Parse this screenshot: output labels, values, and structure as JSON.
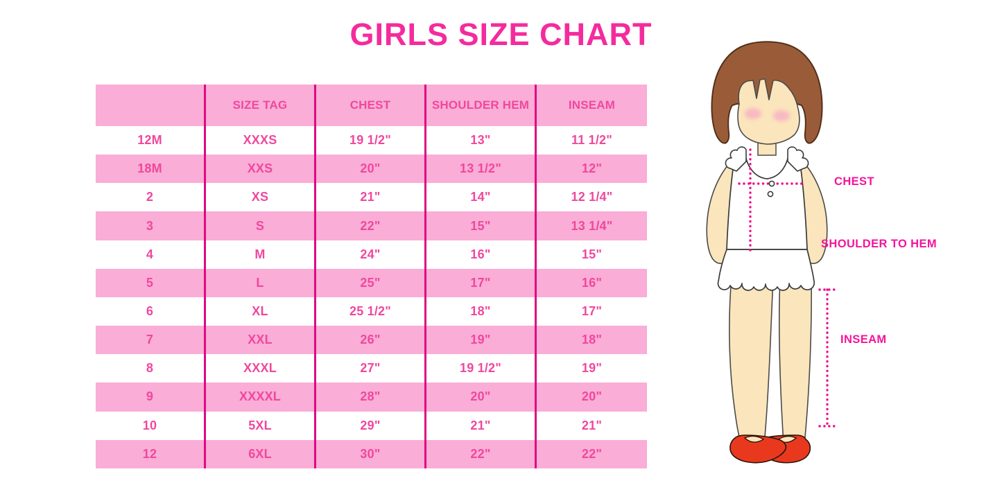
{
  "title": "GIRLS SIZE CHART",
  "colors": {
    "title_pink": "#F42B9D",
    "row_pink": "#FAADD6",
    "divider_magenta": "#DF0980",
    "cell_text_pink": "#F0479E",
    "label_pink": "#F5149B",
    "dotted_line_pink": "#EF0F8E",
    "hair_brown": "#9A5C38",
    "skin": "#FBE5BC",
    "shoe_red": "#E8391F"
  },
  "chart_data": {
    "type": "table",
    "title": "GIRLS SIZE CHART",
    "columns": [
      "",
      "SIZE TAG",
      "CHEST",
      "SHOULDER HEM",
      "INSEAM"
    ],
    "rows": [
      [
        "12M",
        "XXXS",
        "19 1/2\"",
        "13\"",
        "11 1/2\""
      ],
      [
        "18M",
        "XXS",
        "20\"",
        "13 1/2\"",
        "12\""
      ],
      [
        "2",
        "XS",
        "21\"",
        "14\"",
        "12 1/4\""
      ],
      [
        "3",
        "S",
        "22\"",
        "15\"",
        "13 1/4\""
      ],
      [
        "4",
        "M",
        "24\"",
        "16\"",
        "15\""
      ],
      [
        "5",
        "L",
        "25\"",
        "17\"",
        "16\""
      ],
      [
        "6",
        "XL",
        "25 1/2\"",
        "18\"",
        "17\""
      ],
      [
        "7",
        "XXL",
        "26\"",
        "19\"",
        "18\""
      ],
      [
        "8",
        "XXXL",
        "27\"",
        "19 1/2\"",
        "19\""
      ],
      [
        "9",
        "XXXXL",
        "28\"",
        "20\"",
        "20\""
      ],
      [
        "10",
        "5XL",
        "29\"",
        "21\"",
        "21\""
      ],
      [
        "12",
        "6XL",
        "30\"",
        "22\"",
        "22\""
      ]
    ]
  },
  "figure": {
    "labels": {
      "chest": "CHEST",
      "shoulder_to_hem": "SHOULDER TO HEM",
      "inseam": "INSEAM"
    }
  }
}
